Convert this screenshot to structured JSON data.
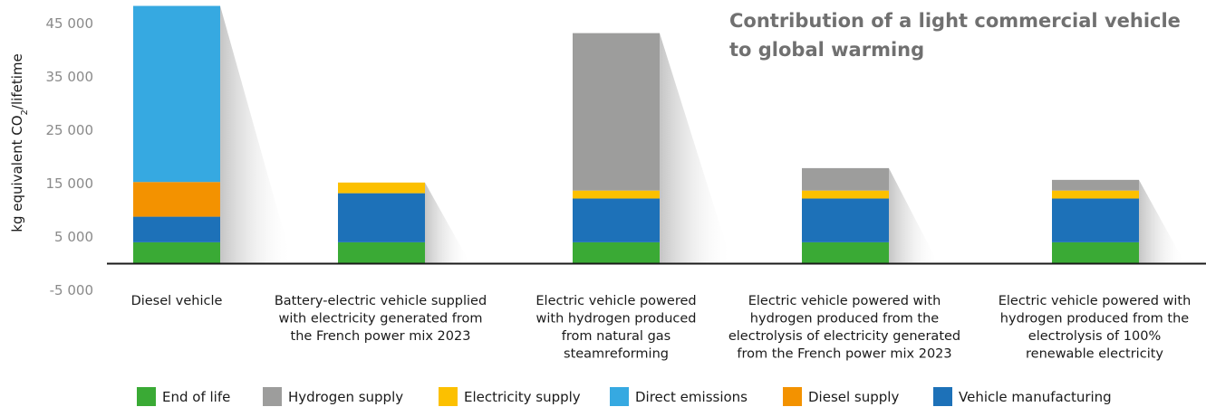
{
  "chart_data": {
    "type": "bar",
    "stacked": true,
    "title_lines": [
      "Contribution of a light commercial vehicle",
      "to global warming"
    ],
    "ylabel_parts": {
      "before": "kg equivalent CO",
      "sub": "2",
      "after": "/lifetime"
    },
    "ylim": [
      -5000,
      45000
    ],
    "yticks": [
      45000,
      35000,
      25000,
      15000,
      5000,
      -5000
    ],
    "ytick_labels": [
      "45 000",
      "35 000",
      "25 000",
      "15 000",
      "5 000",
      "-5 000"
    ],
    "categories": [
      [
        "Diesel vehicle"
      ],
      [
        "Battery-electric vehicle supplied",
        "with electricity  generated from",
        "the French power mix 2023"
      ],
      [
        "Electric vehicle powered",
        "with hydrogen produced",
        "from natural gas",
        "steamreforming"
      ],
      [
        "Electric vehicle powered with",
        "hydrogen produced from the",
        "electrolysis of electricity generated",
        "from the French power mix 2023"
      ],
      [
        "Electric vehicle powered with",
        "hydrogen produced from the",
        "electrolysis of 100%",
        "renewable electricity"
      ]
    ],
    "stack_order": [
      "End of life",
      "Vehicle manufacturing",
      "Diesel supply",
      "Electricity supply",
      "Hydrogen supply",
      "Direct emissions"
    ],
    "series": [
      {
        "name": "End of life",
        "color": "#3aaa35",
        "values": [
          4000,
          4000,
          4000,
          4000,
          4000
        ]
      },
      {
        "name": "Hydrogen supply",
        "color": "#9d9d9c",
        "values": [
          0,
          0,
          29500,
          4200,
          2000
        ]
      },
      {
        "name": "Electricity supply",
        "color": "#fcc000",
        "values": [
          0,
          2000,
          1500,
          1500,
          1500
        ]
      },
      {
        "name": "Direct emissions",
        "color": "#36a9e1",
        "values": [
          33000,
          0,
          0,
          0,
          0
        ]
      },
      {
        "name": "Diesel supply",
        "color": "#f39200",
        "values": [
          6500,
          0,
          0,
          0,
          0
        ]
      },
      {
        "name": "Vehicle manufacturing",
        "color": "#1d71b8",
        "values": [
          4800,
          9200,
          8200,
          8200,
          8200
        ]
      }
    ],
    "legend_position": "bottom",
    "grid": false
  }
}
